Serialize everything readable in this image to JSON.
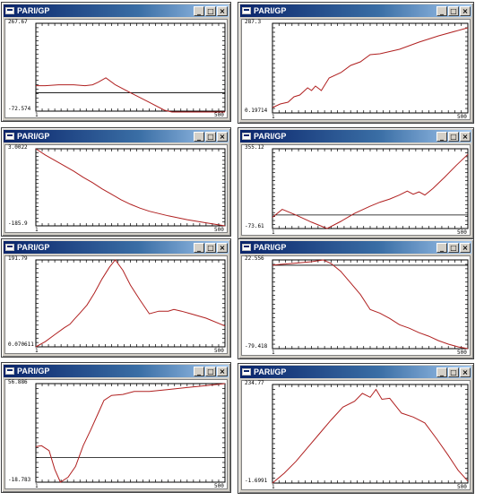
{
  "windows": [
    {
      "title": "PARI/GP",
      "y_max": "267.67",
      "y_min": "-72.574",
      "x_min": "1",
      "x_max": "500",
      "points": [
        [
          0,
          0.29
        ],
        [
          0.05,
          0.29
        ],
        [
          0.12,
          0.3
        ],
        [
          0.2,
          0.3
        ],
        [
          0.26,
          0.29
        ],
        [
          0.3,
          0.3
        ],
        [
          0.33,
          0.33
        ],
        [
          0.37,
          0.38
        ],
        [
          0.42,
          0.3
        ],
        [
          0.5,
          0.21
        ],
        [
          0.6,
          0.1
        ],
        [
          0.68,
          0.01
        ],
        [
          0.72,
          -0.06
        ],
        [
          0.8,
          -0.18
        ],
        [
          0.9,
          -0.34
        ],
        [
          1,
          -0.52
        ]
      ],
      "baseline": 0.21
    },
    {
      "title": "PARI/GP",
      "y_max": "287.3",
      "y_min": "0.19714",
      "x_min": "1",
      "x_max": "500",
      "points": [
        [
          0,
          0.06
        ],
        [
          0.04,
          0.1
        ],
        [
          0.08,
          0.12
        ],
        [
          0.11,
          0.18
        ],
        [
          0.14,
          0.2
        ],
        [
          0.18,
          0.28
        ],
        [
          0.2,
          0.25
        ],
        [
          0.22,
          0.3
        ],
        [
          0.25,
          0.25
        ],
        [
          0.29,
          0.39
        ],
        [
          0.35,
          0.45
        ],
        [
          0.4,
          0.53
        ],
        [
          0.45,
          0.57
        ],
        [
          0.5,
          0.65
        ],
        [
          0.55,
          0.66
        ],
        [
          0.65,
          0.71
        ],
        [
          0.75,
          0.79
        ],
        [
          0.85,
          0.86
        ],
        [
          1,
          0.95
        ]
      ],
      "baseline": null
    },
    {
      "title": "PARI/GP",
      "y_max": "3.0022",
      "y_min": "-185.9",
      "x_min": "1",
      "x_max": "500",
      "points": [
        [
          0,
          1.0
        ],
        [
          0.05,
          0.92
        ],
        [
          0.1,
          0.85
        ],
        [
          0.15,
          0.78
        ],
        [
          0.2,
          0.71
        ],
        [
          0.25,
          0.63
        ],
        [
          0.3,
          0.56
        ],
        [
          0.35,
          0.48
        ],
        [
          0.4,
          0.41
        ],
        [
          0.45,
          0.34
        ],
        [
          0.5,
          0.28
        ],
        [
          0.55,
          0.23
        ],
        [
          0.6,
          0.19
        ],
        [
          0.7,
          0.13
        ],
        [
          0.8,
          0.08
        ],
        [
          0.9,
          0.04
        ],
        [
          1,
          0.0
        ]
      ],
      "baseline": null
    },
    {
      "title": "PARI/GP",
      "y_max": "355.12",
      "y_min": "-73.61",
      "x_min": "1",
      "x_max": "500",
      "points": [
        [
          0,
          0.14
        ],
        [
          0.05,
          0.24
        ],
        [
          0.12,
          0.17
        ],
        [
          0.2,
          0.08
        ],
        [
          0.28,
          0.0
        ],
        [
          0.35,
          0.09
        ],
        [
          0.42,
          0.19
        ],
        [
          0.5,
          0.28
        ],
        [
          0.55,
          0.33
        ],
        [
          0.6,
          0.37
        ],
        [
          0.65,
          0.42
        ],
        [
          0.69,
          0.47
        ],
        [
          0.72,
          0.43
        ],
        [
          0.75,
          0.46
        ],
        [
          0.78,
          0.42
        ],
        [
          0.82,
          0.5
        ],
        [
          0.88,
          0.64
        ],
        [
          0.94,
          0.79
        ],
        [
          1,
          0.93
        ]
      ],
      "baseline": 0.17
    },
    {
      "title": "PARI/GP",
      "y_max": "191.79",
      "y_min": "0.070611",
      "x_min": "1",
      "x_max": "500",
      "points": [
        [
          0,
          0.0
        ],
        [
          0.05,
          0.06
        ],
        [
          0.1,
          0.14
        ],
        [
          0.15,
          0.22
        ],
        [
          0.18,
          0.26
        ],
        [
          0.2,
          0.31
        ],
        [
          0.23,
          0.38
        ],
        [
          0.27,
          0.48
        ],
        [
          0.31,
          0.62
        ],
        [
          0.35,
          0.78
        ],
        [
          0.39,
          0.92
        ],
        [
          0.42,
          1.0
        ],
        [
          0.46,
          0.88
        ],
        [
          0.5,
          0.71
        ],
        [
          0.55,
          0.54
        ],
        [
          0.6,
          0.38
        ],
        [
          0.65,
          0.41
        ],
        [
          0.7,
          0.41
        ],
        [
          0.73,
          0.43
        ],
        [
          0.77,
          0.41
        ],
        [
          0.82,
          0.38
        ],
        [
          0.9,
          0.33
        ],
        [
          1,
          0.24
        ]
      ],
      "baseline": null
    },
    {
      "title": "PARI/GP",
      "y_max": "22.556",
      "y_min": "-79.418",
      "x_min": "1",
      "x_max": "500",
      "points": [
        [
          0,
          0.94
        ],
        [
          0.04,
          0.95
        ],
        [
          0.1,
          0.96
        ],
        [
          0.15,
          0.97
        ],
        [
          0.2,
          0.98
        ],
        [
          0.26,
          1.0
        ],
        [
          0.3,
          0.96
        ],
        [
          0.35,
          0.87
        ],
        [
          0.4,
          0.74
        ],
        [
          0.45,
          0.61
        ],
        [
          0.5,
          0.44
        ],
        [
          0.55,
          0.4
        ],
        [
          0.6,
          0.34
        ],
        [
          0.65,
          0.27
        ],
        [
          0.7,
          0.23
        ],
        [
          0.75,
          0.18
        ],
        [
          0.8,
          0.14
        ],
        [
          0.85,
          0.09
        ],
        [
          0.9,
          0.05
        ],
        [
          0.95,
          0.02
        ],
        [
          1,
          0.0
        ]
      ],
      "baseline": 0.94
    },
    {
      "title": "PARI/GP",
      "y_max": "56.886",
      "y_min": "-18.783",
      "x_min": "1",
      "x_max": "500",
      "points": [
        [
          0,
          0.36
        ],
        [
          0.03,
          0.37
        ],
        [
          0.07,
          0.32
        ],
        [
          0.1,
          0.13
        ],
        [
          0.13,
          0.0
        ],
        [
          0.17,
          0.05
        ],
        [
          0.21,
          0.16
        ],
        [
          0.25,
          0.37
        ],
        [
          0.29,
          0.53
        ],
        [
          0.33,
          0.7
        ],
        [
          0.36,
          0.83
        ],
        [
          0.4,
          0.88
        ],
        [
          0.46,
          0.89
        ],
        [
          0.52,
          0.92
        ],
        [
          0.6,
          0.92
        ],
        [
          0.7,
          0.94
        ],
        [
          0.8,
          0.96
        ],
        [
          0.9,
          0.98
        ],
        [
          1,
          1.0
        ]
      ],
      "baseline": 0.25
    },
    {
      "title": "PARI/GP",
      "y_max": "234.77",
      "y_min": "-1.6991",
      "x_min": "1",
      "x_max": "500",
      "points": [
        [
          0,
          0.0
        ],
        [
          0.06,
          0.1
        ],
        [
          0.12,
          0.22
        ],
        [
          0.18,
          0.36
        ],
        [
          0.24,
          0.5
        ],
        [
          0.3,
          0.64
        ],
        [
          0.36,
          0.77
        ],
        [
          0.42,
          0.83
        ],
        [
          0.46,
          0.91
        ],
        [
          0.5,
          0.87
        ],
        [
          0.53,
          0.95
        ],
        [
          0.56,
          0.85
        ],
        [
          0.6,
          0.86
        ],
        [
          0.66,
          0.71
        ],
        [
          0.72,
          0.67
        ],
        [
          0.78,
          0.61
        ],
        [
          0.84,
          0.45
        ],
        [
          0.9,
          0.28
        ],
        [
          0.95,
          0.13
        ],
        [
          1,
          0.02
        ]
      ],
      "baseline": null
    }
  ],
  "controls": {
    "minimize": "_",
    "maximize": "□",
    "close": "×"
  },
  "colors": {
    "curve": "#b02020",
    "axis": "#000000",
    "titlebar": "#0a246a"
  }
}
